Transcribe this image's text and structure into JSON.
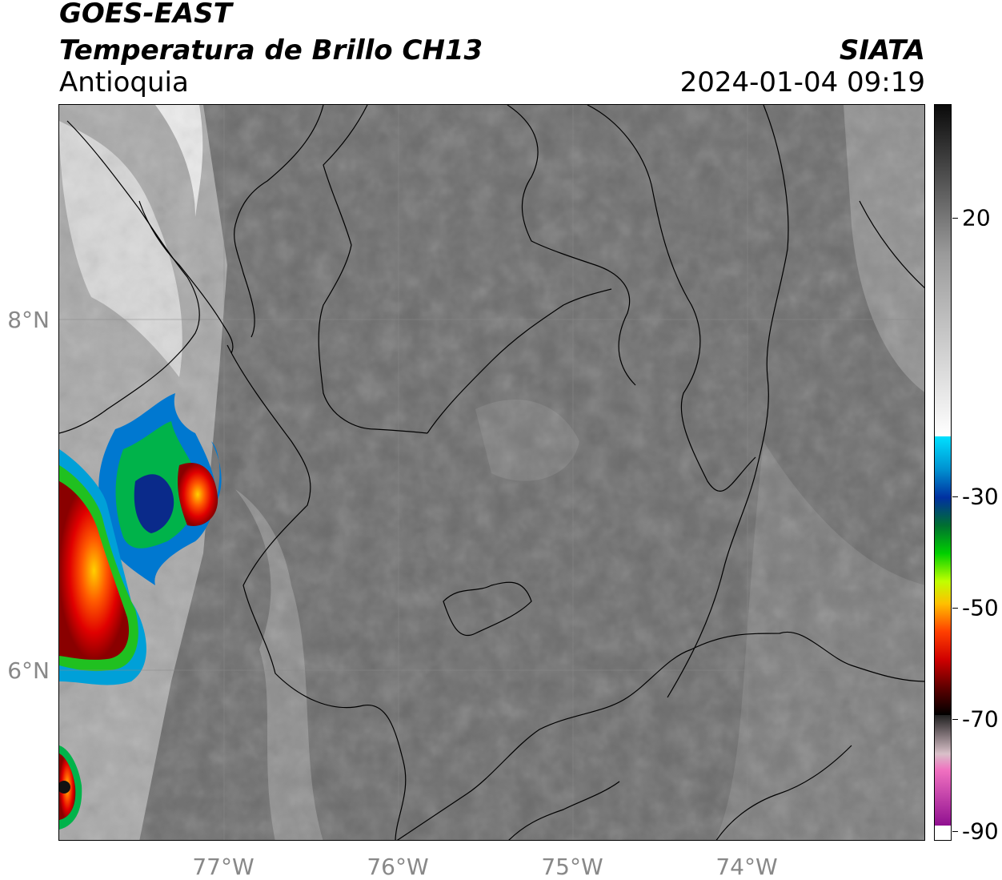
{
  "header": {
    "line1": "GOES-EAST",
    "line2": "Temperatura de Brillo CH13",
    "region": "Antioquia",
    "org": "SIATA",
    "timestamp": "2024-01-04 09:19"
  },
  "map": {
    "lat_labels": [
      "8°N",
      "6°N"
    ],
    "lon_labels": [
      "77°W",
      "76°W",
      "75°W",
      "74°W"
    ],
    "colors": {
      "background_gray": "#6e6e6e",
      "bright_cloud": "#f0f0f0",
      "border": "#000000",
      "grid": "#8a8a8a"
    }
  },
  "colorbar": {
    "ticks": [
      "20",
      "-30",
      "-50",
      "-70",
      "-90"
    ]
  }
}
